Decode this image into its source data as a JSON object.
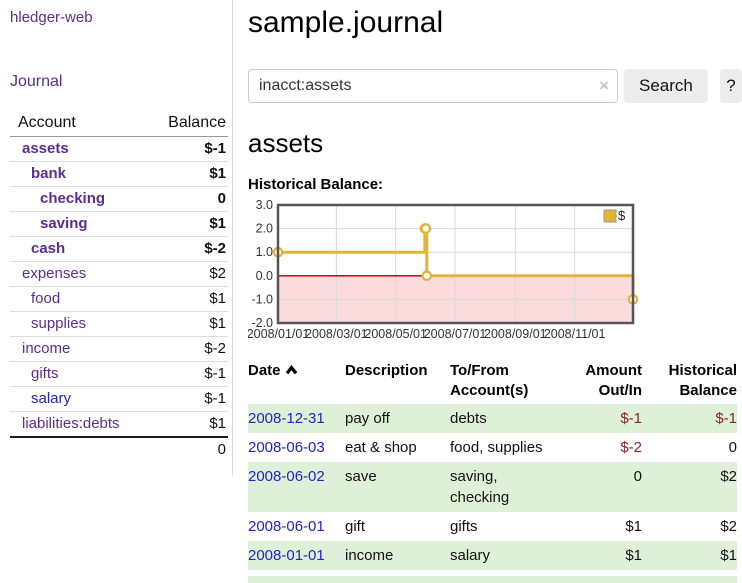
{
  "sidebar": {
    "brand": "hledger-web",
    "nav": {
      "journal": "Journal"
    },
    "accounts_table": {
      "headers": {
        "account": "Account",
        "balance": "Balance"
      },
      "rows": [
        {
          "name": "assets",
          "balance": "$-1"
        },
        {
          "name": "bank",
          "balance": "$1"
        },
        {
          "name": "checking",
          "balance": "0"
        },
        {
          "name": "saving",
          "balance": "$1"
        },
        {
          "name": "cash",
          "balance": "$-2"
        },
        {
          "name": "expenses",
          "balance": "$2"
        },
        {
          "name": "food",
          "balance": "$1"
        },
        {
          "name": "supplies",
          "balance": "$1"
        },
        {
          "name": "income",
          "balance": "$-2"
        },
        {
          "name": "gifts",
          "balance": "$-1"
        },
        {
          "name": "salary",
          "balance": "$-1"
        },
        {
          "name": "liabilities:debts",
          "balance": "$1"
        }
      ],
      "total": "0"
    }
  },
  "header": {
    "title": "sample.journal"
  },
  "search": {
    "value": "inacct:assets",
    "clear_icon": "×",
    "button_label": "Search",
    "help_label": "?"
  },
  "account_page": {
    "title": "assets",
    "chart_label": "Historical Balance:"
  },
  "chart_data": {
    "type": "line",
    "title": "Historical Balance",
    "legend": {
      "label": "$",
      "position": "top-right"
    },
    "series": [
      {
        "name": "$",
        "step": true,
        "dates": [
          "2008-01-01",
          "2008-06-01",
          "2008-06-02",
          "2008-06-03",
          "2008-12-31"
        ],
        "x_days": [
          0,
          151,
          152,
          153,
          365
        ],
        "values": [
          1,
          2,
          2,
          0,
          -1
        ]
      }
    ],
    "ylim": [
      -2,
      3
    ],
    "y_ticks": [
      3.0,
      2.0,
      1.0,
      0.0,
      -1.0,
      -2.0
    ],
    "x_range_days": [
      0,
      365
    ],
    "tick_days": [
      0,
      60,
      121,
      182,
      244,
      305
    ],
    "x_tick_labels": [
      "2008/01/01",
      "2008/03/01",
      "2008/05/01",
      "2008/07/01",
      "2008/09/01",
      "2008/11/01"
    ],
    "grid": true,
    "series_color": "#e3b433",
    "negative_fill": "#fbdcdc",
    "zero_line_color": "#a00000",
    "grid_color": "#d9d9d9",
    "border_color": "#55555a"
  },
  "register_table": {
    "headers": {
      "date": "Date",
      "description": "Description",
      "account": "To/From Account(s)",
      "amount": "Amount Out/In",
      "balance": "Historical Balance"
    },
    "rows": [
      {
        "date": "2008-12-31",
        "description": "pay off",
        "account": "debts",
        "amount": "$-1",
        "balance": "$-1"
      },
      {
        "date": "2008-06-03",
        "description": "eat & shop",
        "account": "food, supplies",
        "amount": "$-2",
        "balance": "0"
      },
      {
        "date": "2008-06-02",
        "description": "save",
        "account": "saving, checking",
        "amount": "0",
        "balance": "$2"
      },
      {
        "date": "2008-06-01",
        "description": "gift",
        "account": "gifts",
        "amount": "$1",
        "balance": "$2"
      },
      {
        "date": "2008-01-01",
        "description": "income",
        "account": "salary",
        "amount": "$1",
        "balance": "$1"
      }
    ]
  },
  "colors": {
    "accent_purple": "#5b2d90",
    "link_blue": "#2222cc",
    "negative_dark_red": "#8b1d1d",
    "negative_pale_red": "#c07a7a",
    "row_stripe_green": "#dff0d8",
    "button_gray": "#ececec"
  }
}
